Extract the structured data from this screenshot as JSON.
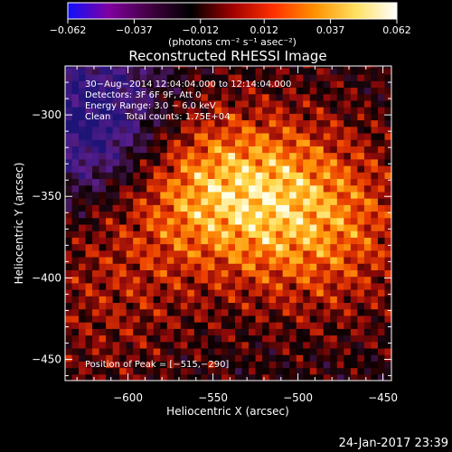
{
  "chart_data": {
    "type": "heatmap",
    "title": "Reconstructed RHESSI Image",
    "xlabel": "Heliocentric X (arcsec)",
    "ylabel": "Heliocentric Y (arcsec)",
    "xlim": [
      -637,
      -445
    ],
    "ylim": [
      -463,
      -270
    ],
    "x_ticks": [
      {
        "value": -600,
        "label": "−600"
      },
      {
        "value": -550,
        "label": "−550"
      },
      {
        "value": -500,
        "label": "−500"
      },
      {
        "value": -450,
        "label": "−450"
      }
    ],
    "y_ticks": [
      {
        "value": -300,
        "label": "−300"
      },
      {
        "value": -350,
        "label": "−350"
      },
      {
        "value": -400,
        "label": "−400"
      },
      {
        "value": -450,
        "label": "−450"
      }
    ],
    "colorbar": {
      "min": -0.062,
      "max": 0.062,
      "tick_labels": [
        "−0.062",
        "−0.037",
        "−0.012",
        "0.012",
        "0.037",
        "0.062"
      ],
      "tick_values": [
        -0.062,
        -0.037,
        -0.012,
        0.012,
        0.037,
        0.062
      ],
      "unit_label": "(photons cm⁻² s⁻¹ asec⁻²)",
      "colors": [
        "#1010ff",
        "#8000a0",
        "#400040",
        "#000000",
        "#a00000",
        "#ff3000",
        "#ff9000",
        "#ffe060",
        "#ffffff"
      ]
    },
    "annotations": [
      "30−Aug−2014 12:04:04.000 to 12:14:04.000",
      "Detectors: 3F 6F 9F, Att 0",
      "Energy Range: 3.0 − 6.0 keV",
      "Clean     Total counts: 1.75E+04"
    ],
    "peak_label": "Position of Peak = [−515,−290]",
    "peak": [
      -515,
      -290
    ]
  },
  "footer_date": "24-Jan-2017 23:39"
}
